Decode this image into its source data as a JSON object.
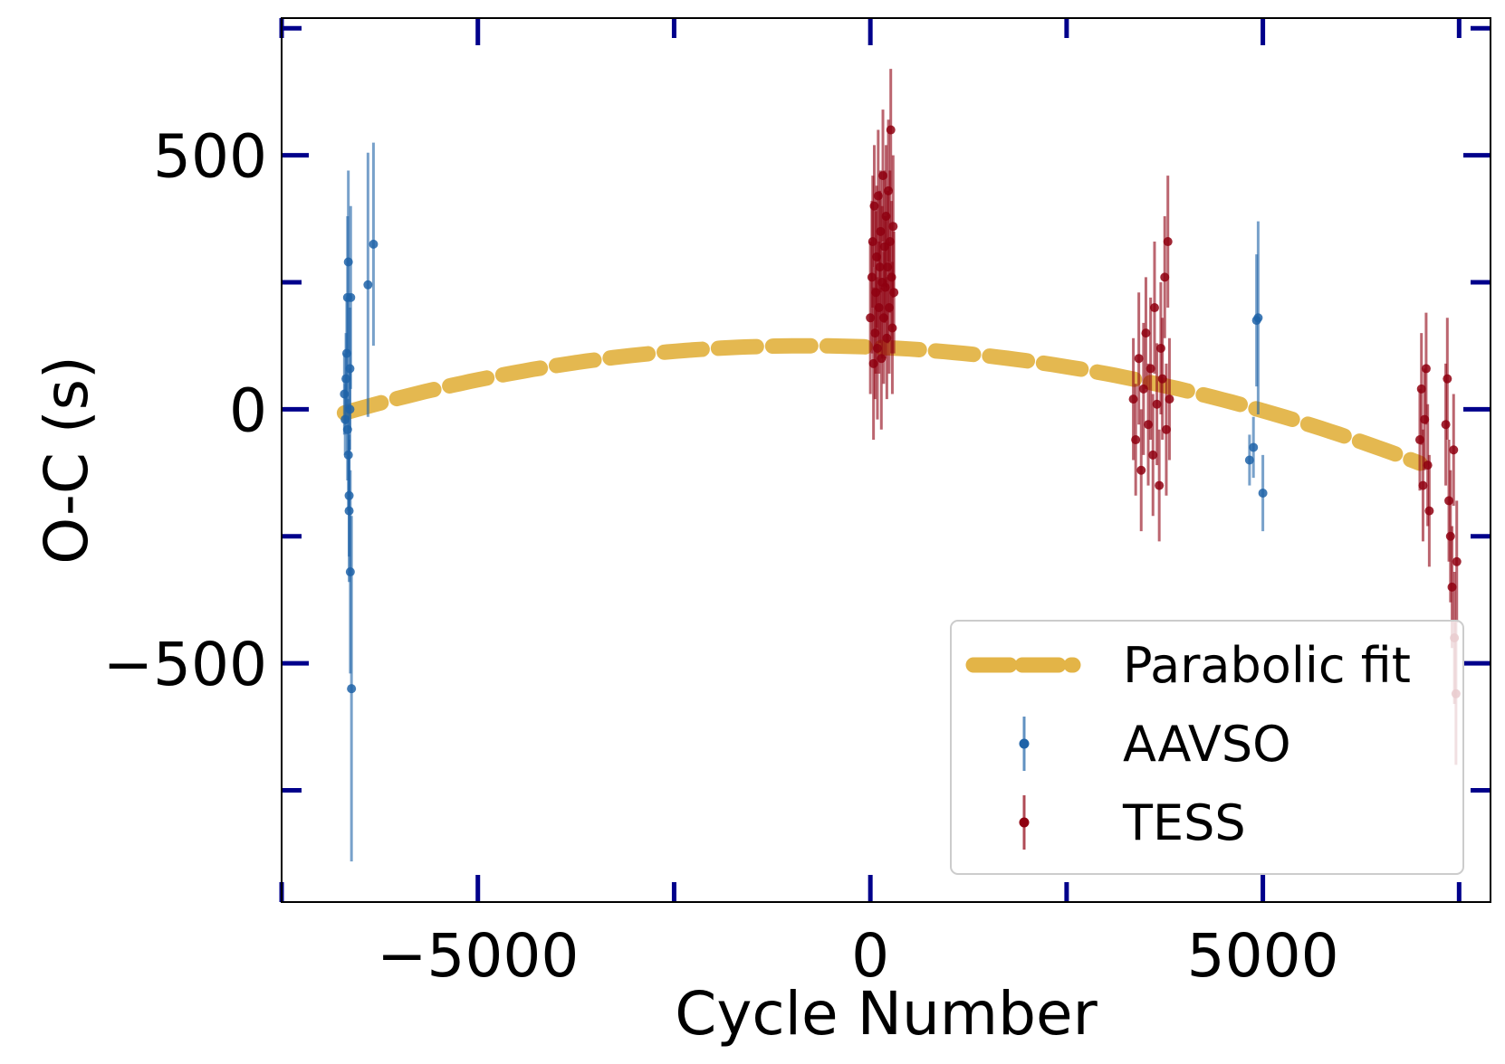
{
  "chart_data": {
    "type": "scatter",
    "xlabel": "Cycle Number",
    "ylabel": "O-C (s)",
    "xlim": [
      -7500,
      7900
    ],
    "ylim": [
      -970,
      770
    ],
    "x_ticks": [
      -5000,
      0,
      5000
    ],
    "x_tick_labels": [
      "−5000",
      "0",
      "5000"
    ],
    "x_minor_ticks": [
      -7500,
      -2500,
      2500,
      7500
    ],
    "y_ticks": [
      -500,
      0,
      500
    ],
    "y_tick_labels": [
      "−500",
      "0",
      "500"
    ],
    "y_minor_ticks": [
      -750,
      -250,
      250,
      750
    ],
    "grid": false,
    "legend_position": "lower-right",
    "legend": [
      {
        "label": "Parabolic fit",
        "kind": "dashed-line",
        "color": "#e3b447"
      },
      {
        "label": "AAVSO",
        "kind": "errorbar",
        "color": "#1f63a8"
      },
      {
        "label": "TESS",
        "kind": "errorbar",
        "color": "#8f0010"
      }
    ],
    "tick_color": "#00008b",
    "fit": {
      "name": "Parabolic fit",
      "type": "parabola",
      "vertex_x": -800,
      "vertex_y": 125,
      "a": -3.8e-06,
      "x_range": [
        -6700,
        7000
      ],
      "color": "#e3b447"
    },
    "series": [
      {
        "name": "AAVSO",
        "color": "#1f63a8",
        "points": [
          {
            "x": -6700,
            "y": 30,
            "err": 80
          },
          {
            "x": -6690,
            "y": -20,
            "err": 70
          },
          {
            "x": -6680,
            "y": 60,
            "err": 90
          },
          {
            "x": -6670,
            "y": 110,
            "err": 110
          },
          {
            "x": -6660,
            "y": 220,
            "err": 160
          },
          {
            "x": -6650,
            "y": 290,
            "err": 180
          },
          {
            "x": -6660,
            "y": -40,
            "err": 100
          },
          {
            "x": -6650,
            "y": -90,
            "err": 110
          },
          {
            "x": -6640,
            "y": -170,
            "err": 120
          },
          {
            "x": -6640,
            "y": -200,
            "err": 140
          },
          {
            "x": -6630,
            "y": 0,
            "err": 80
          },
          {
            "x": -6630,
            "y": 80,
            "err": 120
          },
          {
            "x": -6625,
            "y": -320,
            "err": 200
          },
          {
            "x": -6620,
            "y": 220,
            "err": 180
          },
          {
            "x": -6610,
            "y": -550,
            "err": 340
          },
          {
            "x": -6400,
            "y": 245,
            "err": 260
          },
          {
            "x": -6330,
            "y": 325,
            "err": 200
          },
          {
            "x": 4830,
            "y": -100,
            "err": 50
          },
          {
            "x": 4880,
            "y": -75,
            "err": 60
          },
          {
            "x": 4920,
            "y": 175,
            "err": 130
          },
          {
            "x": 4940,
            "y": 180,
            "err": 190
          },
          {
            "x": 5000,
            "y": -165,
            "err": 75
          }
        ]
      },
      {
        "name": "TESS",
        "color": "#8f0010",
        "points": [
          {
            "x": 0,
            "y": 180,
            "err": 150
          },
          {
            "x": 20,
            "y": 260,
            "err": 150
          },
          {
            "x": 30,
            "y": 330,
            "err": 130
          },
          {
            "x": 40,
            "y": 90,
            "err": 150
          },
          {
            "x": 50,
            "y": 400,
            "err": 120
          },
          {
            "x": 60,
            "y": 150,
            "err": 130
          },
          {
            "x": 70,
            "y": 230,
            "err": 160
          },
          {
            "x": 80,
            "y": 300,
            "err": 140
          },
          {
            "x": 90,
            "y": 120,
            "err": 140
          },
          {
            "x": 100,
            "y": 420,
            "err": 130
          },
          {
            "x": 110,
            "y": 200,
            "err": 130
          },
          {
            "x": 120,
            "y": 280,
            "err": 150
          },
          {
            "x": 130,
            "y": 350,
            "err": 120
          },
          {
            "x": 140,
            "y": 100,
            "err": 140
          },
          {
            "x": 150,
            "y": 250,
            "err": 150
          },
          {
            "x": 160,
            "y": 460,
            "err": 130
          },
          {
            "x": 170,
            "y": 180,
            "err": 130
          },
          {
            "x": 180,
            "y": 320,
            "err": 150
          },
          {
            "x": 190,
            "y": 240,
            "err": 140
          },
          {
            "x": 200,
            "y": 380,
            "err": 140
          },
          {
            "x": 210,
            "y": 140,
            "err": 120
          },
          {
            "x": 220,
            "y": 280,
            "err": 150
          },
          {
            "x": 230,
            "y": 430,
            "err": 140
          },
          {
            "x": 240,
            "y": 200,
            "err": 130
          },
          {
            "x": 250,
            "y": 330,
            "err": 140
          },
          {
            "x": 260,
            "y": 550,
            "err": 120
          },
          {
            "x": 270,
            "y": 260,
            "err": 150
          },
          {
            "x": 280,
            "y": 160,
            "err": 130
          },
          {
            "x": 290,
            "y": 360,
            "err": 140
          },
          {
            "x": 300,
            "y": 230,
            "err": 120
          },
          {
            "x": 3350,
            "y": 20,
            "err": 120
          },
          {
            "x": 3380,
            "y": -60,
            "err": 110
          },
          {
            "x": 3420,
            "y": 100,
            "err": 130
          },
          {
            "x": 3450,
            "y": -120,
            "err": 120
          },
          {
            "x": 3480,
            "y": 40,
            "err": 130
          },
          {
            "x": 3510,
            "y": 150,
            "err": 110
          },
          {
            "x": 3540,
            "y": -30,
            "err": 120
          },
          {
            "x": 3570,
            "y": 80,
            "err": 140
          },
          {
            "x": 3600,
            "y": -90,
            "err": 120
          },
          {
            "x": 3620,
            "y": 200,
            "err": 130
          },
          {
            "x": 3650,
            "y": 10,
            "err": 120
          },
          {
            "x": 3680,
            "y": -150,
            "err": 110
          },
          {
            "x": 3700,
            "y": 120,
            "err": 130
          },
          {
            "x": 3720,
            "y": 60,
            "err": 120
          },
          {
            "x": 3750,
            "y": 260,
            "err": 120
          },
          {
            "x": 3770,
            "y": -40,
            "err": 130
          },
          {
            "x": 3790,
            "y": 330,
            "err": 130
          },
          {
            "x": 3810,
            "y": 20,
            "err": 120
          },
          {
            "x": 7000,
            "y": -60,
            "err": 100
          },
          {
            "x": 7020,
            "y": 40,
            "err": 110
          },
          {
            "x": 7040,
            "y": -150,
            "err": 110
          },
          {
            "x": 7060,
            "y": -20,
            "err": 100
          },
          {
            "x": 7080,
            "y": 80,
            "err": 110
          },
          {
            "x": 7100,
            "y": -110,
            "err": 120
          },
          {
            "x": 7120,
            "y": -200,
            "err": 110
          },
          {
            "x": 7330,
            "y": -30,
            "err": 120
          },
          {
            "x": 7350,
            "y": 60,
            "err": 120
          },
          {
            "x": 7370,
            "y": -180,
            "err": 120
          },
          {
            "x": 7390,
            "y": -250,
            "err": 130
          },
          {
            "x": 7410,
            "y": -350,
            "err": 120
          },
          {
            "x": 7430,
            "y": -80,
            "err": 110
          },
          {
            "x": 7440,
            "y": -450,
            "err": 130
          },
          {
            "x": 7460,
            "y": -560,
            "err": 140
          },
          {
            "x": 7470,
            "y": -300,
            "err": 120
          }
        ]
      }
    ]
  }
}
